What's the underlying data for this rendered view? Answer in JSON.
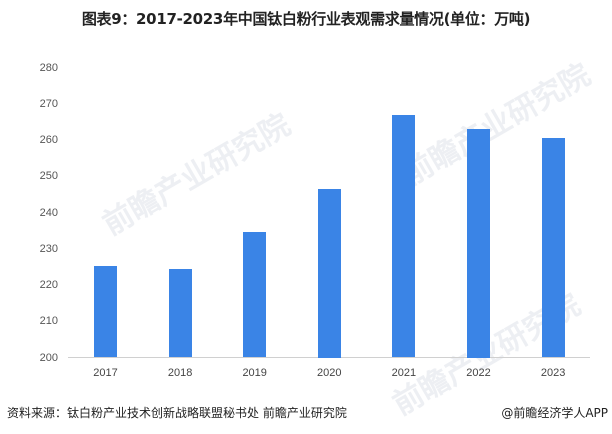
{
  "title": "图表9：2017-2023年中国钛白粉行业表观需求量情况(单位：万吨)",
  "footer": {
    "source": "资料来源：钛白粉产业技术创新战略联盟秘书处 前瞻产业研究院",
    "credit": "@前瞻经济学人APP"
  },
  "watermark": "前瞻产业研究院",
  "colors": {
    "bar": "#3a84e6",
    "axis": "#d0d0d0"
  },
  "chart_data": {
    "type": "bar",
    "title": "图表9：2017-2023年中国钛白粉行业表观需求量情况(单位：万吨)",
    "xlabel": "",
    "ylabel": "万吨",
    "categories": [
      "2017",
      "2018",
      "2019",
      "2020",
      "2021",
      "2022",
      "2023"
    ],
    "values": [
      225.2,
      224.4,
      234.6,
      246.5,
      266.9,
      263.0,
      260.6
    ],
    "ylim": [
      200,
      280
    ],
    "yticks": [
      "200",
      "210",
      "220",
      "230",
      "240",
      "250",
      "260",
      "270",
      "280"
    ],
    "grid": false,
    "legend": null
  }
}
